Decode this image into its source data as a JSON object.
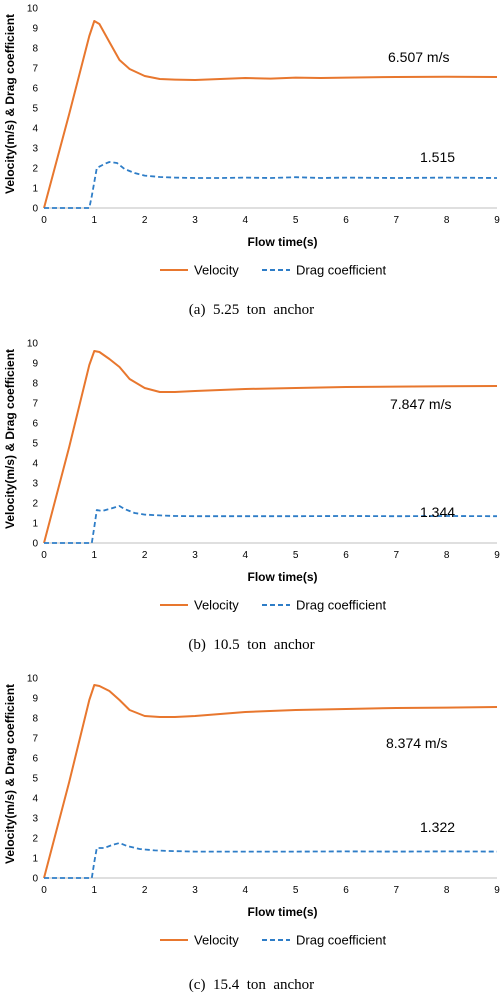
{
  "colors": {
    "velocity": "#E8772E",
    "drag": "#2E7DC7",
    "grid": "#d9d9d9",
    "axis": "#bfbfbf"
  },
  "chart_data": [
    {
      "type": "line",
      "caption": "(a)  5.25  ton  anchor",
      "xlabel": "Flow time(s)",
      "ylabel": "Velocity(m/s) & Drag coefficient",
      "xlim": [
        0,
        9
      ],
      "ylim": [
        0,
        10
      ],
      "xticks": [
        "0",
        "1",
        "2",
        "3",
        "4",
        "5",
        "6",
        "7",
        "8",
        "9"
      ],
      "yticks": [
        "0",
        "1",
        "2",
        "3",
        "4",
        "5",
        "6",
        "7",
        "8",
        "9",
        "10"
      ],
      "legend_position": "bottom",
      "annotations": [
        {
          "text": "6.507 m/s",
          "series": "Velocity"
        },
        {
          "text": "1.515",
          "series": "Drag coefficient"
        }
      ],
      "series": [
        {
          "name": "Velocity",
          "style": "solid",
          "x": [
            0,
            0.5,
            0.9,
            1.0,
            1.1,
            1.3,
            1.5,
            1.7,
            2.0,
            2.3,
            2.6,
            3.0,
            3.5,
            4.0,
            4.5,
            5.0,
            5.5,
            6.0,
            7.0,
            8.0,
            9.0
          ],
          "y": [
            0,
            4.7,
            8.6,
            9.35,
            9.2,
            8.3,
            7.4,
            6.95,
            6.6,
            6.45,
            6.42,
            6.4,
            6.45,
            6.5,
            6.47,
            6.52,
            6.5,
            6.52,
            6.55,
            6.56,
            6.55
          ]
        },
        {
          "name": "Drag coefficient",
          "style": "dashed",
          "x": [
            0,
            0.9,
            0.95,
            1.05,
            1.2,
            1.3,
            1.45,
            1.6,
            1.8,
            2.0,
            2.3,
            2.6,
            3.0,
            3.5,
            4.0,
            4.5,
            5.0,
            5.5,
            6.0,
            7.0,
            8.0,
            9.0
          ],
          "y": [
            0,
            0,
            0.6,
            2.0,
            2.2,
            2.3,
            2.25,
            1.95,
            1.75,
            1.62,
            1.55,
            1.52,
            1.5,
            1.5,
            1.52,
            1.5,
            1.54,
            1.5,
            1.52,
            1.5,
            1.52,
            1.5
          ]
        }
      ]
    },
    {
      "type": "line",
      "caption": "(b)  10.5  ton  anchor",
      "xlabel": "Flow time(s)",
      "ylabel": "Velocity(m/s) & Drag coefficient",
      "xlim": [
        0,
        9
      ],
      "ylim": [
        0,
        10
      ],
      "xticks": [
        "0",
        "1",
        "2",
        "3",
        "4",
        "5",
        "6",
        "7",
        "8",
        "9"
      ],
      "yticks": [
        "0",
        "1",
        "2",
        "3",
        "4",
        "5",
        "6",
        "7",
        "8",
        "9",
        "10"
      ],
      "legend_position": "bottom",
      "annotations": [
        {
          "text": "7.847 m/s",
          "series": "Velocity"
        },
        {
          "text": "1.344",
          "series": "Drag coefficient"
        }
      ],
      "series": [
        {
          "name": "Velocity",
          "style": "solid",
          "x": [
            0,
            0.5,
            0.9,
            1.0,
            1.1,
            1.3,
            1.5,
            1.7,
            2.0,
            2.3,
            2.6,
            3.0,
            3.5,
            4.0,
            5.0,
            6.0,
            7.0,
            8.0,
            9.0
          ],
          "y": [
            0,
            4.8,
            8.9,
            9.6,
            9.55,
            9.2,
            8.8,
            8.2,
            7.75,
            7.55,
            7.55,
            7.6,
            7.65,
            7.7,
            7.75,
            7.8,
            7.82,
            7.84,
            7.85
          ]
        },
        {
          "name": "Drag coefficient",
          "style": "dashed",
          "x": [
            0,
            0.95,
            1.0,
            1.05,
            1.15,
            1.3,
            1.5,
            1.6,
            1.8,
            2.0,
            2.3,
            2.6,
            3.0,
            4.0,
            5.0,
            6.0,
            7.0,
            8.0,
            9.0
          ],
          "y": [
            0,
            0,
            0.8,
            1.65,
            1.6,
            1.7,
            1.85,
            1.7,
            1.5,
            1.42,
            1.38,
            1.35,
            1.34,
            1.34,
            1.34,
            1.35,
            1.34,
            1.35,
            1.34
          ]
        }
      ]
    },
    {
      "type": "line",
      "caption": "(c)  15.4  ton  anchor",
      "xlabel": "Flow time(s)",
      "ylabel": "Velocity(m/s) & Drag coefficient",
      "xlim": [
        0,
        9
      ],
      "ylim": [
        0,
        10
      ],
      "xticks": [
        "0",
        "1",
        "2",
        "3",
        "4",
        "5",
        "6",
        "7",
        "8",
        "9"
      ],
      "yticks": [
        "0",
        "1",
        "2",
        "3",
        "4",
        "5",
        "6",
        "7",
        "8",
        "9",
        "10"
      ],
      "legend_position": "bottom",
      "annotations": [
        {
          "text": "8.374 m/s",
          "series": "Velocity"
        },
        {
          "text": "1.322",
          "series": "Drag coefficient"
        }
      ],
      "series": [
        {
          "name": "Velocity",
          "style": "solid",
          "x": [
            0,
            0.5,
            0.9,
            1.0,
            1.1,
            1.3,
            1.5,
            1.7,
            2.0,
            2.3,
            2.6,
            3.0,
            3.5,
            4.0,
            5.0,
            6.0,
            7.0,
            8.0,
            9.0
          ],
          "y": [
            0,
            4.8,
            8.9,
            9.65,
            9.6,
            9.35,
            8.9,
            8.4,
            8.1,
            8.05,
            8.05,
            8.1,
            8.2,
            8.3,
            8.4,
            8.45,
            8.5,
            8.52,
            8.55
          ]
        },
        {
          "name": "Drag coefficient",
          "style": "dashed",
          "x": [
            0,
            0.95,
            1.0,
            1.05,
            1.2,
            1.35,
            1.5,
            1.65,
            1.9,
            2.2,
            2.5,
            3.0,
            4.0,
            5.0,
            6.0,
            7.0,
            8.0,
            9.0
          ],
          "y": [
            0,
            0,
            0.8,
            1.5,
            1.5,
            1.65,
            1.75,
            1.6,
            1.45,
            1.38,
            1.35,
            1.32,
            1.32,
            1.32,
            1.33,
            1.32,
            1.33,
            1.32
          ]
        }
      ]
    }
  ]
}
